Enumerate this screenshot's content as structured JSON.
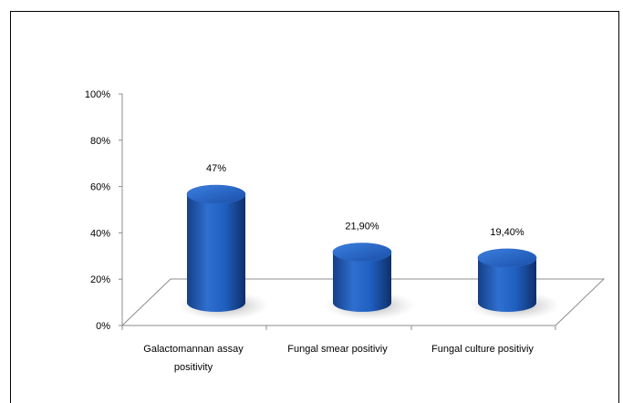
{
  "chart_data": {
    "type": "bar",
    "style": "3d-cylinder",
    "categories": [
      [
        "Galactomannan assay",
        "positivity"
      ],
      [
        "Fungal smear positiviy"
      ],
      [
        "Fungal culture positiviy"
      ]
    ],
    "values": [
      47,
      21.9,
      19.4
    ],
    "data_labels": [
      "47%",
      "21,90%",
      "19,40%"
    ],
    "y_ticks": [
      "0%",
      "20%",
      "40%",
      "60%",
      "80%",
      "100%"
    ],
    "ylim": [
      0,
      100
    ],
    "bar_color": "#1f5fbf",
    "grid": false,
    "legend": "none"
  }
}
